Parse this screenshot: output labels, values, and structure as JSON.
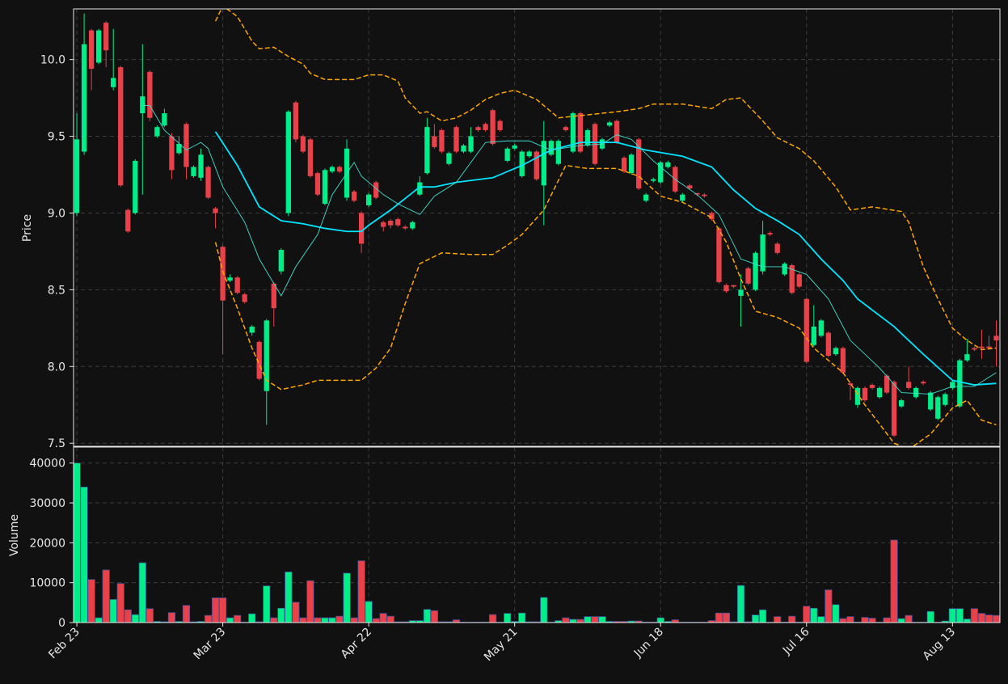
{
  "chart_data": [
    {
      "type": "candlestick",
      "ylabel": "Price",
      "grid": true,
      "up_color": "#00ee8a",
      "down_color": "#e8414a",
      "ylim": [
        7.48,
        10.33
      ],
      "yticks": [
        7.5,
        {
          "value": 8,
          "label": "8.0"
        },
        8.5,
        {
          "value": 9,
          "label": "9.0"
        },
        9.5,
        {
          "value": 10,
          "label": "10.0"
        }
      ],
      "open": [
        9.0,
        9.4,
        10.19,
        9.98,
        10.24,
        9.82,
        9.95,
        9.02,
        9.0,
        9.65,
        9.92,
        9.5,
        9.57,
        9.5,
        9.39,
        9.58,
        9.24,
        9.23,
        9.3,
        9.03,
        8.78,
        8.56,
        8.58,
        8.47,
        8.22,
        8.16,
        7.84,
        8.54,
        8.62,
        9.0,
        9.72,
        9.5,
        9.48,
        9.26,
        9.06,
        9.27,
        9.3,
        9.1,
        9.14,
        9.0,
        9.05,
        9.2,
        8.94,
        8.95,
        8.96,
        8.91,
        8.9,
        9.12,
        9.26,
        9.5,
        9.54,
        9.32,
        9.56,
        9.4,
        9.4,
        9.56,
        9.58,
        9.67,
        9.6,
        9.34,
        9.42,
        9.24,
        9.37,
        9.4,
        9.18,
        9.38,
        9.32,
        9.56,
        9.4,
        9.65,
        9.44,
        9.58,
        9.42,
        9.57,
        9.6,
        9.36,
        9.26,
        9.48,
        9.08,
        9.21,
        9.2,
        9.3,
        9.3,
        9.08,
        9.18,
        9.13,
        9.12,
        9.0,
        8.9,
        8.53,
        8.53,
        8.46,
        8.64,
        8.5,
        8.62,
        8.87,
        8.8,
        8.6,
        8.66,
        8.6,
        8.44,
        8.14,
        8.2,
        8.22,
        8.08,
        8.12,
        7.89,
        7.75,
        7.86,
        7.88,
        7.8,
        7.94,
        7.9,
        7.74,
        7.9,
        7.8,
        7.9,
        7.72,
        7.66,
        7.75,
        7.86,
        7.74,
        8.04,
        8.12,
        8.13,
        8.13,
        8.2
      ],
      "high": [
        9.65,
        10.3,
        10.2,
        10.2,
        10.25,
        10.2,
        9.96,
        9.03,
        9.35,
        10.1,
        9.93,
        9.57,
        9.68,
        9.52,
        9.5,
        9.59,
        9.31,
        9.42,
        9.31,
        9.04,
        8.79,
        8.6,
        8.59,
        8.48,
        8.27,
        8.17,
        8.31,
        8.55,
        8.77,
        9.67,
        9.73,
        9.51,
        9.49,
        9.27,
        9.29,
        9.31,
        9.31,
        9.48,
        9.15,
        9.01,
        9.13,
        9.21,
        8.95,
        8.96,
        8.97,
        8.92,
        8.95,
        9.24,
        9.62,
        9.58,
        9.55,
        9.4,
        9.57,
        9.45,
        9.56,
        9.57,
        9.59,
        9.68,
        9.61,
        9.43,
        9.45,
        9.41,
        9.41,
        9.41,
        9.6,
        9.48,
        9.48,
        9.57,
        9.66,
        9.66,
        9.55,
        9.59,
        9.49,
        9.6,
        9.61,
        9.37,
        9.39,
        9.49,
        9.13,
        9.23,
        9.34,
        9.34,
        9.31,
        9.13,
        9.19,
        9.13,
        9.13,
        9.01,
        8.91,
        8.54,
        8.53,
        8.6,
        8.65,
        8.75,
        8.95,
        8.88,
        8.81,
        8.68,
        8.67,
        8.61,
        8.45,
        8.4,
        8.31,
        8.23,
        8.13,
        8.13,
        7.9,
        7.87,
        7.87,
        7.89,
        7.87,
        7.95,
        7.91,
        7.79,
        8.0,
        7.87,
        7.91,
        7.84,
        7.81,
        7.83,
        7.91,
        8.05,
        8.18,
        8.13,
        8.24,
        8.2,
        8.3
      ],
      "low": [
        8.98,
        9.38,
        9.8,
        9.97,
        9.95,
        9.8,
        9.17,
        8.87,
        8.99,
        9.12,
        9.6,
        9.49,
        9.56,
        9.22,
        9.38,
        9.22,
        9.23,
        9.21,
        9.09,
        8.9,
        8.08,
        8.55,
        8.47,
        8.41,
        8.2,
        7.91,
        7.62,
        8.26,
        8.6,
        8.98,
        9.46,
        9.39,
        9.23,
        9.11,
        9.05,
        9.26,
        9.26,
        9.08,
        9.07,
        8.74,
        9.04,
        9.09,
        8.88,
        8.9,
        8.91,
        8.89,
        8.89,
        9.11,
        9.25,
        9.42,
        9.39,
        9.31,
        9.39,
        9.39,
        9.39,
        9.53,
        9.53,
        9.44,
        9.53,
        9.33,
        9.41,
        9.23,
        9.36,
        9.21,
        8.92,
        9.37,
        9.31,
        9.53,
        9.39,
        9.39,
        9.43,
        9.31,
        9.41,
        9.56,
        9.45,
        9.26,
        9.25,
        9.15,
        9.07,
        9.2,
        9.19,
        9.29,
        9.13,
        9.07,
        9.15,
        9.11,
        9.1,
        8.95,
        8.54,
        8.48,
        8.51,
        8.26,
        8.53,
        8.49,
        8.6,
        8.85,
        8.73,
        8.59,
        8.47,
        8.51,
        8.02,
        8.13,
        8.19,
        8.06,
        8.07,
        7.95,
        7.78,
        7.73,
        7.77,
        7.85,
        7.79,
        7.82,
        7.54,
        7.73,
        7.85,
        7.79,
        7.88,
        7.71,
        7.65,
        7.74,
        7.85,
        7.73,
        8.03,
        8.1,
        8.05,
        8.11,
        8.0
      ],
      "close": [
        9.48,
        10.1,
        9.94,
        10.19,
        10.06,
        9.88,
        9.18,
        8.88,
        9.34,
        9.76,
        9.62,
        9.56,
        9.65,
        9.28,
        9.45,
        9.3,
        9.3,
        9.38,
        9.1,
        9.0,
        8.43,
        8.58,
        8.48,
        8.42,
        8.26,
        7.92,
        8.3,
        8.38,
        8.76,
        9.66,
        9.48,
        9.4,
        9.24,
        9.12,
        9.28,
        9.3,
        9.27,
        9.42,
        9.08,
        8.8,
        9.12,
        9.1,
        8.91,
        8.92,
        8.92,
        8.9,
        8.94,
        9.2,
        9.56,
        9.43,
        9.4,
        9.39,
        9.4,
        9.44,
        9.5,
        9.54,
        9.54,
        9.45,
        9.54,
        9.42,
        9.44,
        9.4,
        9.4,
        9.22,
        9.47,
        9.47,
        9.47,
        9.54,
        9.65,
        9.4,
        9.54,
        9.32,
        9.48,
        9.59,
        9.46,
        9.27,
        9.38,
        9.16,
        9.12,
        9.22,
        9.33,
        9.33,
        9.14,
        9.12,
        9.16,
        9.12,
        9.11,
        8.96,
        8.55,
        8.49,
        8.52,
        8.5,
        8.54,
        8.74,
        8.86,
        8.86,
        8.74,
        8.67,
        8.48,
        8.52,
        8.03,
        8.26,
        8.3,
        8.07,
        8.12,
        7.96,
        7.88,
        7.86,
        7.78,
        7.86,
        7.86,
        7.83,
        7.55,
        7.78,
        7.86,
        7.86,
        7.89,
        7.83,
        7.8,
        7.82,
        7.9,
        8.04,
        8.08,
        8.11,
        8.12,
        8.12,
        8.17
      ],
      "series": [
        {
          "color": "#00e5ff",
          "width": 1.8,
          "dash": false,
          "x": [
            19,
            22,
            25,
            28,
            31,
            34,
            37,
            39,
            40,
            43,
            47,
            49,
            52,
            57,
            61,
            65,
            69,
            74,
            78,
            83,
            87,
            90,
            93,
            96,
            99,
            102,
            105,
            107,
            112,
            116,
            120,
            123,
            126
          ],
          "values": [
            9.53,
            9.31,
            9.04,
            8.95,
            8.93,
            8.9,
            8.88,
            8.88,
            8.92,
            9.02,
            9.17,
            9.17,
            9.2,
            9.23,
            9.31,
            9.41,
            9.46,
            9.46,
            9.41,
            9.37,
            9.3,
            9.15,
            9.03,
            8.95,
            8.86,
            8.7,
            8.56,
            8.44,
            8.26,
            8.08,
            7.91,
            7.88,
            7.89
          ]
        },
        {
          "color": "#40e0d0",
          "width": 0.9,
          "dash": false,
          "x": [
            9,
            10,
            12,
            15,
            17,
            18,
            20,
            23,
            25,
            28,
            30,
            33,
            35,
            38,
            39,
            42,
            44,
            47,
            49,
            52,
            56,
            59,
            62,
            65,
            69,
            72,
            74,
            76,
            79,
            82,
            85,
            88,
            91,
            94,
            97,
            100,
            103,
            106,
            110,
            113,
            117,
            120,
            123,
            126
          ],
          "values": [
            9.7,
            9.7,
            9.54,
            9.41,
            9.46,
            9.42,
            9.17,
            8.94,
            8.7,
            8.46,
            8.65,
            8.86,
            9.12,
            9.33,
            9.24,
            9.12,
            9.06,
            8.99,
            9.11,
            9.2,
            9.46,
            9.47,
            9.47,
            9.41,
            9.44,
            9.45,
            9.51,
            9.48,
            9.34,
            9.22,
            9.12,
            8.99,
            8.7,
            8.65,
            8.65,
            8.6,
            8.44,
            8.17,
            7.99,
            7.83,
            7.82,
            7.87,
            7.87,
            7.96
          ]
        },
        {
          "color": "#ffa500",
          "width": 1.5,
          "dash": true,
          "x": [
            19,
            20,
            22,
            24,
            25,
            27,
            29,
            31,
            32,
            34,
            38,
            40,
            42,
            44,
            45,
            47,
            48,
            50,
            52,
            54,
            56,
            58,
            60,
            63,
            66,
            70,
            74,
            77,
            79,
            83,
            87,
            89,
            91,
            94,
            96,
            99,
            101,
            104,
            106,
            109,
            113,
            114,
            116,
            118,
            120,
            122,
            124,
            126
          ],
          "values": [
            10.25,
            10.35,
            10.28,
            10.12,
            10.07,
            10.08,
            10.02,
            9.97,
            9.91,
            9.87,
            9.87,
            9.9,
            9.9,
            9.86,
            9.75,
            9.65,
            9.66,
            9.6,
            9.62,
            9.67,
            9.74,
            9.78,
            9.8,
            9.74,
            9.62,
            9.64,
            9.66,
            9.68,
            9.71,
            9.71,
            9.68,
            9.74,
            9.75,
            9.6,
            9.49,
            9.42,
            9.34,
            9.17,
            9.02,
            9.04,
            9.01,
            8.94,
            8.65,
            8.44,
            8.25,
            8.17,
            8.11,
            8.12
          ]
        },
        {
          "color": "#ffa500",
          "width": 1.5,
          "dash": true,
          "x": [
            19,
            20,
            22,
            24,
            26,
            28,
            31,
            33,
            36,
            39,
            41,
            43,
            45,
            47,
            50,
            54,
            57,
            59,
            61,
            64,
            67,
            70,
            74,
            77,
            80,
            83,
            87,
            89,
            91,
            93,
            96,
            99,
            101,
            105,
            108,
            112,
            114,
            117,
            120,
            122,
            124,
            126
          ],
          "values": [
            8.81,
            8.62,
            8.38,
            8.12,
            7.91,
            7.85,
            7.88,
            7.91,
            7.91,
            7.91,
            7.99,
            8.12,
            8.41,
            8.67,
            8.74,
            8.73,
            8.73,
            8.79,
            8.86,
            9.02,
            9.31,
            9.29,
            9.29,
            9.24,
            9.11,
            9.07,
            8.97,
            8.81,
            8.57,
            8.36,
            8.32,
            8.25,
            8.12,
            7.96,
            7.75,
            7.5,
            7.46,
            7.56,
            7.73,
            7.78,
            7.65,
            7.62
          ]
        }
      ]
    },
    {
      "type": "bar",
      "ylabel": "Volume",
      "grid": true,
      "ylim": [
        0,
        44000
      ],
      "yticks": [
        0,
        10000,
        20000,
        30000,
        40000
      ],
      "xlim": [
        -0.45,
        126.5
      ],
      "xticks": [
        {
          "value": 0,
          "label": "Feb 23"
        },
        {
          "value": 20,
          "label": "Mar 23"
        },
        {
          "value": 40,
          "label": "Apr 22"
        },
        {
          "value": 60,
          "label": "May 21"
        },
        {
          "value": 80,
          "label": "Jun 18"
        },
        {
          "value": 100,
          "label": "Jul 16"
        },
        {
          "value": 120,
          "label": "Aug 13"
        }
      ],
      "values": [
        40000,
        34000,
        10800,
        1200,
        13200,
        5800,
        9800,
        3200,
        2000,
        15000,
        3500,
        300,
        200,
        2500,
        300,
        4300,
        200,
        300,
        1800,
        6200,
        6200,
        1200,
        1800,
        100,
        2200,
        200,
        9200,
        1200,
        3600,
        12700,
        5100,
        1200,
        10500,
        1200,
        1200,
        1200,
        1600,
        12400,
        1200,
        15500,
        5300,
        1000,
        2300,
        1600,
        200,
        200,
        500,
        500,
        3300,
        3000,
        200,
        200,
        700,
        100,
        100,
        100,
        100,
        2000,
        100,
        2300,
        300,
        2400,
        200,
        200,
        6300,
        100,
        500,
        1200,
        800,
        800,
        1500,
        1500,
        1500,
        300,
        300,
        300,
        400,
        400,
        100,
        100,
        1200,
        300,
        700,
        100,
        100,
        100,
        100,
        500,
        2400,
        2400,
        200,
        9300,
        200,
        1900,
        3200,
        100,
        1500,
        100,
        1600,
        100,
        4100,
        3600,
        1500,
        8200,
        4500,
        1000,
        1500,
        100,
        1300,
        1100,
        100,
        1200,
        20700,
        1000,
        1800,
        100,
        100,
        2800,
        100,
        400,
        3500,
        3500,
        900,
        3500,
        2300,
        1900,
        1800
      ]
    }
  ]
}
